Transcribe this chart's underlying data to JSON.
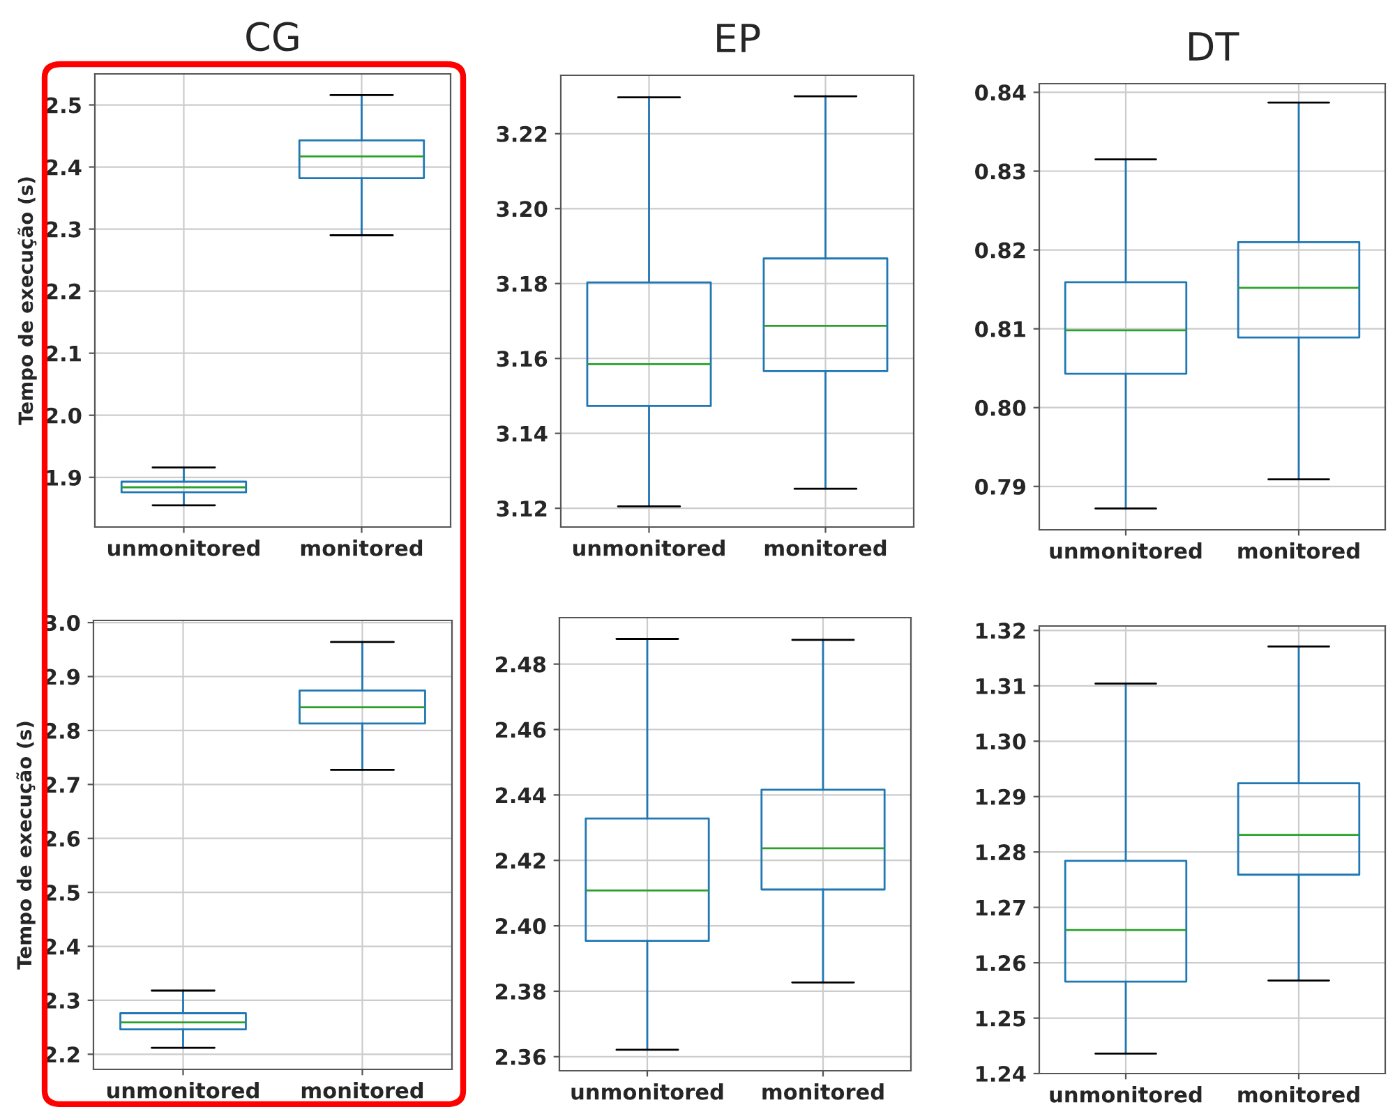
{
  "chart_data": [
    {
      "type": "box",
      "title": "CG",
      "ylabel": "Tempo de execução (s)",
      "categories": [
        "unmonitored",
        "monitored"
      ],
      "ylim": [
        1.82,
        2.55
      ],
      "yticks": [
        1.9,
        {
          "value": 2.0,
          "label": "2.0"
        },
        2.1,
        2.2,
        2.3,
        2.4,
        2.5
      ],
      "grid": true,
      "series": [
        {
          "color": "#1f77b4",
          "boxes": [
            {
              "low": 1.855,
              "q1": 1.876,
              "median": 1.884,
              "q3": 1.893,
              "high": 1.916
            },
            {
              "low": 2.29,
              "q1": 2.382,
              "median": 2.417,
              "q3": 2.443,
              "high": 2.516
            }
          ]
        }
      ]
    },
    {
      "type": "box",
      "title": "EP",
      "categories": [
        "unmonitored",
        "monitored"
      ],
      "ylim": [
        3.115,
        3.2356
      ],
      "yticks": [
        3.12,
        3.14,
        3.16,
        3.18,
        {
          "value": 3.2,
          "label": "3.20"
        },
        3.22
      ],
      "grid": true,
      "series": [
        {
          "color": "#1f77b4",
          "boxes": [
            {
              "low": 3.1205,
              "q1": 3.1473,
              "median": 3.1585,
              "q3": 3.1803,
              "high": 3.2297
            },
            {
              "low": 3.1252,
              "q1": 3.1566,
              "median": 3.1687,
              "q3": 3.1867,
              "high": 3.23
            }
          ]
        }
      ]
    },
    {
      "type": "box",
      "title": "DT",
      "categories": [
        "unmonitored",
        "monitored"
      ],
      "ylim": [
        0.7845,
        0.8411
      ],
      "yticks": [
        0.79,
        {
          "value": 0.8,
          "label": "0.80"
        },
        0.81,
        0.82,
        0.83,
        0.84
      ],
      "grid": true,
      "series": [
        {
          "color": "#1f77b4",
          "boxes": [
            {
              "low": 0.7872,
              "q1": 0.8043,
              "median": 0.8098,
              "q3": 0.8159,
              "high": 0.8315
            },
            {
              "low": 0.7909,
              "q1": 0.8089,
              "median": 0.8152,
              "q3": 0.821,
              "high": 0.8387
            }
          ]
        }
      ]
    },
    {
      "type": "box",
      "ylabel": "Tempo de execução (s)",
      "categories": [
        "unmonitored",
        "monitored"
      ],
      "ylim": [
        2.172,
        3.004
      ],
      "yticks": [
        2.2,
        2.3,
        2.4,
        2.5,
        2.6,
        2.7,
        2.8,
        2.9,
        {
          "value": 3.0,
          "label": "3.0"
        }
      ],
      "grid": true,
      "series": [
        {
          "color": "#1f77b4",
          "boxes": [
            {
              "low": 2.212,
              "q1": 2.246,
              "median": 2.259,
              "q3": 2.276,
              "high": 2.318
            },
            {
              "low": 2.727,
              "q1": 2.813,
              "median": 2.843,
              "q3": 2.874,
              "high": 2.964
            }
          ]
        }
      ]
    },
    {
      "type": "box",
      "categories": [
        "unmonitored",
        "monitored"
      ],
      "ylim": [
        2.3557,
        2.4942
      ],
      "yticks": [
        2.36,
        2.38,
        {
          "value": 2.4,
          "label": "2.40"
        },
        2.42,
        2.44,
        2.46,
        2.48
      ],
      "grid": true,
      "series": [
        {
          "color": "#1f77b4",
          "boxes": [
            {
              "low": 2.3621,
              "q1": 2.3954,
              "median": 2.4108,
              "q3": 2.4328,
              "high": 2.4877
            },
            {
              "low": 2.3827,
              "q1": 2.4111,
              "median": 2.4237,
              "q3": 2.4416,
              "high": 2.4874
            }
          ]
        }
      ]
    },
    {
      "type": "box",
      "categories": [
        "unmonitored",
        "monitored"
      ],
      "ylim": [
        1.24,
        1.3208
      ],
      "yticks": [
        1.24,
        1.25,
        1.26,
        1.27,
        1.28,
        1.29,
        {
          "value": 1.3,
          "label": "1.30"
        },
        1.31,
        1.32
      ],
      "grid": true,
      "series": [
        {
          "color": "#1f77b4",
          "boxes": [
            {
              "low": 1.2436,
              "q1": 1.2566,
              "median": 1.2659,
              "q3": 1.2784,
              "high": 1.3104
            },
            {
              "low": 1.2568,
              "q1": 1.2759,
              "median": 1.2831,
              "q3": 1.2924,
              "high": 1.3171
            }
          ]
        }
      ]
    }
  ]
}
